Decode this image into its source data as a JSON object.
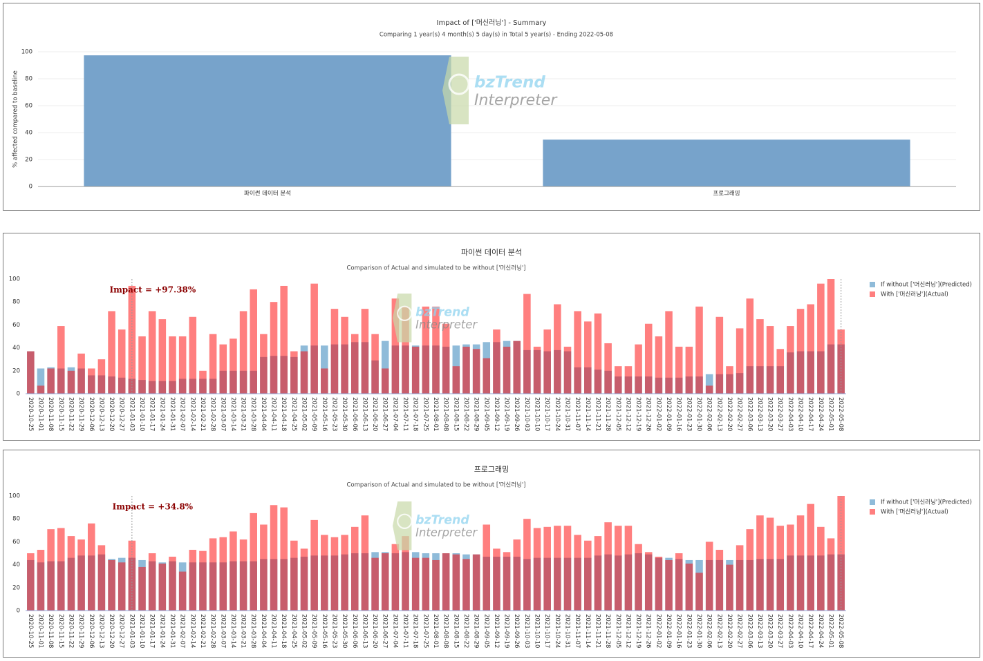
{
  "watermark": {
    "brand": "bzTrend",
    "product": "Interpreter"
  },
  "chart_data": [
    {
      "type": "bar",
      "title": "Impact of ['머신러닝'] - Summary",
      "subtitle": "Comparing 1 year(s) 4 month(s) 5 day(s) in Total 5 year(s)  - Ending 2022-05-08",
      "y_label": "% affected compared to baseline",
      "categories": [
        "파이썬 데이터 분석",
        "프로그래밍"
      ],
      "values": [
        97.38,
        34.8
      ],
      "color": "#77a3cb",
      "ylim": [
        0,
        100
      ],
      "yticks": [
        0,
        20,
        40,
        60,
        80,
        100
      ],
      "grid": true
    },
    {
      "type": "bar",
      "title": "파이썬 데이터 분석",
      "subtitle": "Comparison of Actual and simulated to be without ['머신러닝']",
      "categories": [
        "2020-10-25",
        "2020-11-01",
        "2020-11-08",
        "2020-11-15",
        "2020-11-22",
        "2020-11-29",
        "2020-12-06",
        "2020-12-13",
        "2020-12-20",
        "2020-12-27",
        "2021-01-03",
        "2021-01-10",
        "2021-01-17",
        "2021-01-24",
        "2021-01-31",
        "2021-02-07",
        "2021-02-14",
        "2021-02-21",
        "2021-02-28",
        "2021-03-07",
        "2021-03-14",
        "2021-03-21",
        "2021-03-28",
        "2021-04-04",
        "2021-04-11",
        "2021-04-18",
        "2021-04-25",
        "2021-05-02",
        "2021-05-09",
        "2021-05-16",
        "2021-05-23",
        "2021-05-30",
        "2021-06-06",
        "2021-06-13",
        "2021-06-20",
        "2021-06-27",
        "2021-07-04",
        "2021-07-11",
        "2021-07-18",
        "2021-07-25",
        "2021-08-01",
        "2021-08-08",
        "2021-08-15",
        "2021-08-22",
        "2021-08-29",
        "2021-09-05",
        "2021-09-12",
        "2021-09-19",
        "2021-09-26",
        "2021-10-03",
        "2021-10-10",
        "2021-10-17",
        "2021-10-24",
        "2021-10-31",
        "2021-11-07",
        "2021-11-14",
        "2021-11-21",
        "2021-11-28",
        "2021-12-05",
        "2021-12-12",
        "2021-12-19",
        "2021-12-26",
        "2022-01-02",
        "2022-01-09",
        "2022-01-16",
        "2022-01-23",
        "2022-01-30",
        "2022-02-06",
        "2022-02-13",
        "2022-02-20",
        "2022-02-27",
        "2022-03-06",
        "2022-03-13",
        "2022-03-20",
        "2022-03-27",
        "2022-04-03",
        "2022-04-10",
        "2022-04-17",
        "2022-04-24",
        "2022-05-01",
        "2022-05-08"
      ],
      "series": [
        {
          "name": "If without ['머신러닝'](Predicted)",
          "color": "#1f77b4",
          "values": [
            37,
            22,
            23,
            22,
            23,
            22,
            16,
            16,
            15,
            14,
            13,
            12,
            11,
            11,
            11,
            13,
            13,
            13,
            13,
            20,
            20,
            20,
            20,
            32,
            33,
            33,
            32,
            42,
            42,
            42,
            43,
            43,
            45,
            45,
            29,
            46,
            42,
            42,
            42,
            42,
            42,
            41,
            42,
            43,
            43,
            45,
            45,
            46,
            46,
            38,
            38,
            37,
            38,
            37,
            23,
            23,
            21,
            20,
            15,
            15,
            15,
            15,
            14,
            14,
            14,
            15,
            15,
            17,
            17,
            17,
            18,
            24,
            24,
            24,
            24,
            36,
            37,
            37,
            37,
            43,
            43
          ]
        },
        {
          "name": "With ['머신러닝'](Actual)",
          "color": "#ff0000",
          "values": [
            37,
            7,
            22,
            59,
            20,
            35,
            22,
            30,
            72,
            56,
            94,
            50,
            72,
            65,
            50,
            50,
            67,
            20,
            52,
            43,
            48,
            72,
            91,
            52,
            80,
            94,
            37,
            37,
            96,
            22,
            74,
            67,
            52,
            74,
            52,
            22,
            83,
            76,
            41,
            76,
            76,
            61,
            24,
            41,
            39,
            31,
            56,
            41,
            46,
            87,
            41,
            56,
            78,
            41,
            72,
            63,
            70,
            44,
            24,
            24,
            43,
            61,
            50,
            72,
            41,
            41,
            76,
            7,
            67,
            24,
            57,
            83,
            65,
            59,
            39,
            59,
            74,
            78,
            96,
            100,
            56
          ]
        }
      ],
      "opacity": 0.5,
      "ylim": [
        0,
        100
      ],
      "yticks": [
        0,
        20,
        40,
        60,
        80,
        100
      ],
      "grid": false,
      "annotation": {
        "text": "Impact = +97.38%",
        "x": "2021-01-03"
      },
      "legend": "right"
    },
    {
      "type": "bar",
      "title": "프로그래밍",
      "subtitle": "Comparison of Actual and simulated to be without ['머신러닝']",
      "categories": [
        "2020-10-25",
        "2020-11-01",
        "2020-11-08",
        "2020-11-15",
        "2020-11-22",
        "2020-11-29",
        "2020-12-06",
        "2020-12-13",
        "2020-12-20",
        "2020-12-27",
        "2021-01-03",
        "2021-01-10",
        "2021-01-17",
        "2021-01-24",
        "2021-01-31",
        "2021-02-07",
        "2021-02-14",
        "2021-02-21",
        "2021-02-28",
        "2021-03-07",
        "2021-03-14",
        "2021-03-21",
        "2021-03-28",
        "2021-04-04",
        "2021-04-11",
        "2021-04-18",
        "2021-04-25",
        "2021-05-02",
        "2021-05-09",
        "2021-05-16",
        "2021-05-23",
        "2021-05-30",
        "2021-06-06",
        "2021-06-13",
        "2021-06-20",
        "2021-06-27",
        "2021-07-04",
        "2021-07-11",
        "2021-07-18",
        "2021-07-25",
        "2021-08-01",
        "2021-08-08",
        "2021-08-15",
        "2021-08-22",
        "2021-08-29",
        "2021-09-05",
        "2021-09-12",
        "2021-09-19",
        "2021-09-26",
        "2021-10-03",
        "2021-10-10",
        "2021-10-17",
        "2021-10-24",
        "2021-10-31",
        "2021-11-07",
        "2021-11-14",
        "2021-11-21",
        "2021-11-28",
        "2021-12-05",
        "2021-12-12",
        "2021-12-19",
        "2021-12-26",
        "2022-01-02",
        "2022-01-09",
        "2022-01-16",
        "2022-01-23",
        "2022-01-30",
        "2022-02-06",
        "2022-02-13",
        "2022-02-20",
        "2022-02-27",
        "2022-03-06",
        "2022-03-13",
        "2022-03-20",
        "2022-03-27",
        "2022-04-03",
        "2022-04-10",
        "2022-04-17",
        "2022-04-24",
        "2022-05-01",
        "2022-05-08"
      ],
      "series": [
        {
          "name": "If without ['머신러닝'](Predicted)",
          "color": "#1f77b4",
          "values": [
            44,
            42,
            43,
            43,
            46,
            48,
            48,
            49,
            45,
            46,
            46,
            44,
            43,
            42,
            43,
            42,
            42,
            42,
            42,
            42,
            43,
            43,
            43,
            45,
            45,
            45,
            46,
            47,
            48,
            48,
            48,
            49,
            50,
            50,
            51,
            51,
            50,
            51,
            51,
            50,
            50,
            50,
            50,
            49,
            49,
            47,
            47,
            47,
            47,
            45,
            46,
            46,
            46,
            46,
            46,
            46,
            48,
            49,
            48,
            49,
            50,
            49,
            46,
            46,
            45,
            44,
            44,
            44,
            44,
            44,
            44,
            44,
            45,
            45,
            45,
            48,
            48,
            48,
            48,
            49,
            49
          ]
        },
        {
          "name": "With ['머신러닝'](Actual)",
          "color": "#ff0000",
          "values": [
            50,
            53,
            71,
            72,
            65,
            62,
            76,
            57,
            44,
            42,
            61,
            38,
            50,
            41,
            47,
            34,
            53,
            52,
            63,
            64,
            69,
            62,
            85,
            75,
            92,
            90,
            61,
            54,
            79,
            66,
            64,
            66,
            73,
            83,
            46,
            50,
            58,
            65,
            46,
            46,
            44,
            50,
            49,
            45,
            49,
            75,
            54,
            51,
            62,
            80,
            72,
            73,
            74,
            74,
            66,
            61,
            65,
            77,
            74,
            74,
            58,
            51,
            47,
            44,
            50,
            41,
            33,
            60,
            53,
            40,
            57,
            71,
            83,
            81,
            74,
            75,
            83,
            93,
            73,
            63,
            100
          ]
        }
      ],
      "opacity": 0.5,
      "ylim": [
        0,
        100
      ],
      "yticks": [
        0,
        20,
        40,
        60,
        80,
        100
      ],
      "grid": false,
      "annotation": {
        "text": "Impact = +34.8%",
        "x": "2021-01-03"
      },
      "legend": "right"
    }
  ]
}
